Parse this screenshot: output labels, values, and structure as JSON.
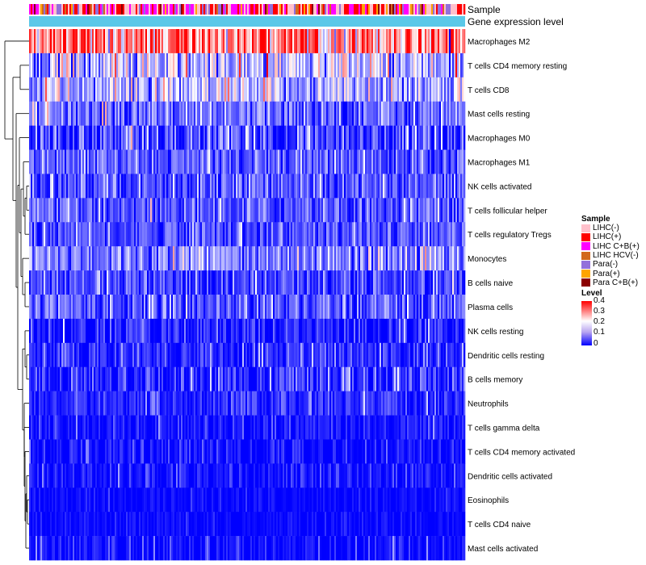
{
  "chart_data": {
    "type": "heatmap",
    "title": "",
    "annotation_tracks": [
      "Sample",
      "Gene expression level"
    ],
    "rows": [
      {
        "label": "Macrophages M2",
        "mean": 0.3,
        "spread": 0.09
      },
      {
        "label": "T cells CD4 memory resting",
        "mean": 0.14,
        "spread": 0.07
      },
      {
        "label": "T cells CD8",
        "mean": 0.13,
        "spread": 0.06
      },
      {
        "label": "Mast cells resting",
        "mean": 0.08,
        "spread": 0.05
      },
      {
        "label": "Macrophages M0",
        "mean": 0.05,
        "spread": 0.06
      },
      {
        "label": "Macrophages M1",
        "mean": 0.07,
        "spread": 0.04
      },
      {
        "label": "NK cells activated",
        "mean": 0.065,
        "spread": 0.04
      },
      {
        "label": "T cells follicular helper",
        "mean": 0.065,
        "spread": 0.04
      },
      {
        "label": "T cells regulatory  Tregs",
        "mean": 0.06,
        "spread": 0.04
      },
      {
        "label": "Monocytes",
        "mean": 0.1,
        "spread": 0.05
      },
      {
        "label": "B cells naive",
        "mean": 0.05,
        "spread": 0.04
      },
      {
        "label": "Plasma cells",
        "mean": 0.07,
        "spread": 0.045
      },
      {
        "label": "NK cells resting",
        "mean": 0.02,
        "spread": 0.04
      },
      {
        "label": "Dendritic cells resting",
        "mean": 0.035,
        "spread": 0.035
      },
      {
        "label": "B cells memory",
        "mean": 0.035,
        "spread": 0.04
      },
      {
        "label": "Neutrophils",
        "mean": 0.03,
        "spread": 0.03
      },
      {
        "label": "T cells gamma delta",
        "mean": 0.01,
        "spread": 0.03
      },
      {
        "label": "T cells CD4 memory activated",
        "mean": 0.01,
        "spread": 0.03
      },
      {
        "label": "Dendritic cells activated",
        "mean": 0.012,
        "spread": 0.03
      },
      {
        "label": "Eosinophils",
        "mean": 0.004,
        "spread": 0.015
      },
      {
        "label": "T cells CD4 naive",
        "mean": 0.004,
        "spread": 0.015
      },
      {
        "label": "Mast cells activated",
        "mean": 0.012,
        "spread": 0.03
      }
    ],
    "sample_groups": [
      {
        "name": "LIHC(-)",
        "color": "#ffc0cb",
        "weight": 0.3
      },
      {
        "name": "LIHC(+)",
        "color": "#ff0000",
        "weight": 0.2
      },
      {
        "name": "LIHC C+B(+)",
        "color": "#ff00ff",
        "weight": 0.2
      },
      {
        "name": "LIHC HCV(-)",
        "color": "#d2691e",
        "weight": 0.06
      },
      {
        "name": "Para(-)",
        "color": "#9370db",
        "weight": 0.12
      },
      {
        "name": "Para(+)",
        "color": "#ffa500",
        "weight": 0.06
      },
      {
        "name": "Para C+B(+)",
        "color": "#8b0000",
        "weight": 0.06
      }
    ],
    "gene_expression_color": "#5bc8e8",
    "legend": {
      "sample_title": "Sample",
      "level_title": "Level",
      "level_ticks": [
        "0.4",
        "0.3",
        "0.2",
        "0.1",
        "0"
      ]
    },
    "color_scale": {
      "min": 0,
      "max": 0.4,
      "low": "#0000ff",
      "mid": "#ffffff",
      "high": "#ff0000"
    },
    "n_samples": 270,
    "legend_placement": "right"
  }
}
